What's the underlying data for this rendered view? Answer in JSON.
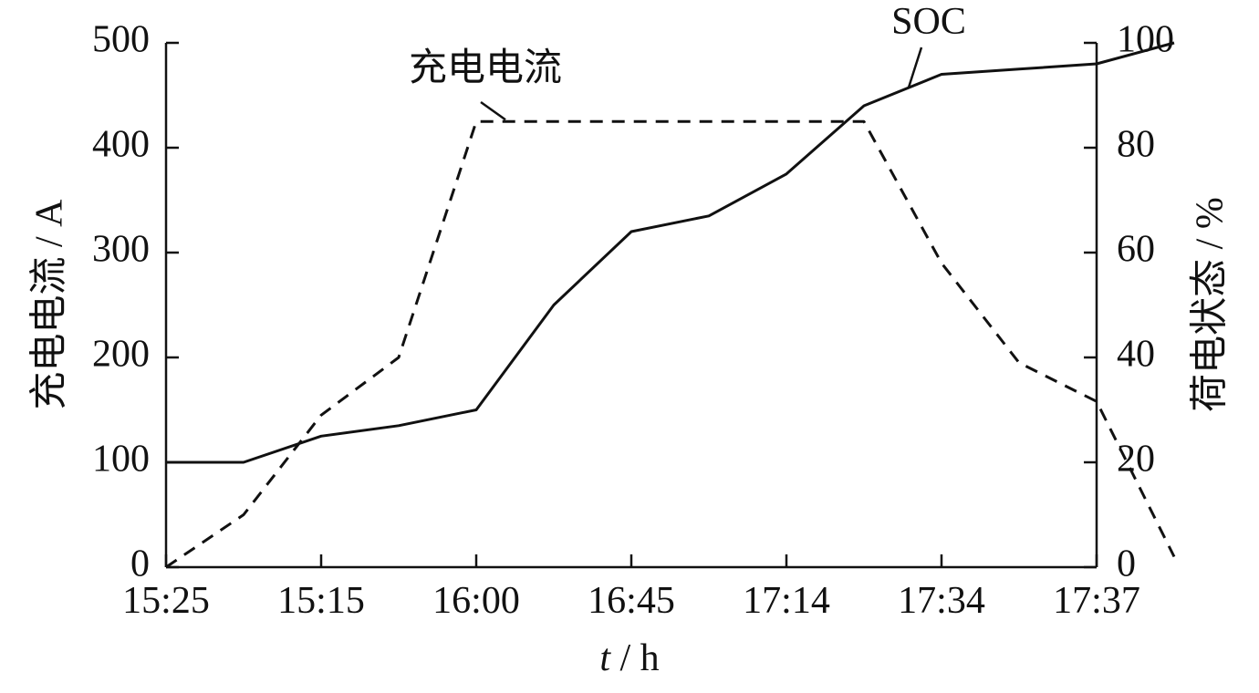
{
  "chart_data": {
    "type": "line",
    "x_ticks": [
      "15:25",
      "15:15",
      "16:00",
      "16:45",
      "17:14",
      "17:34",
      "17:37"
    ],
    "xlabel_var": "t",
    "xlabel_unit": " / h",
    "ylabel_left": "充电电流 / A",
    "ylabel_right": "荷电状态 / %",
    "ylim_left": [
      0,
      500
    ],
    "ylim_right": [
      0,
      100
    ],
    "yticks_left": [
      "0",
      "100",
      "200",
      "300",
      "400",
      "500"
    ],
    "yticks_right": [
      "0",
      "20",
      "40",
      "60",
      "80",
      "100"
    ],
    "grid": false,
    "series": [
      {
        "name": "充电电流",
        "axis": "left",
        "style": "dashed",
        "color": "#111111",
        "x": [
          0,
          0.5,
          1,
          1.5,
          2,
          4.5,
          5,
          5.5,
          6,
          6.5
        ],
        "y": [
          0,
          50,
          145,
          200,
          425,
          425,
          290,
          195,
          158,
          10
        ]
      },
      {
        "name": "SOC",
        "axis": "right",
        "style": "solid",
        "color": "#111111",
        "x": [
          0,
          0.5,
          1,
          1.5,
          2,
          2.5,
          3,
          3.5,
          4,
          4.5,
          5,
          5.5,
          6,
          6.5
        ],
        "y": [
          20,
          20,
          25,
          27,
          30,
          50,
          64,
          67,
          75,
          88,
          94,
          95,
          96,
          100
        ]
      }
    ],
    "annotations": [
      {
        "text": "充电电流",
        "target_series": 0
      },
      {
        "text": "SOC",
        "target_series": 1
      }
    ]
  }
}
